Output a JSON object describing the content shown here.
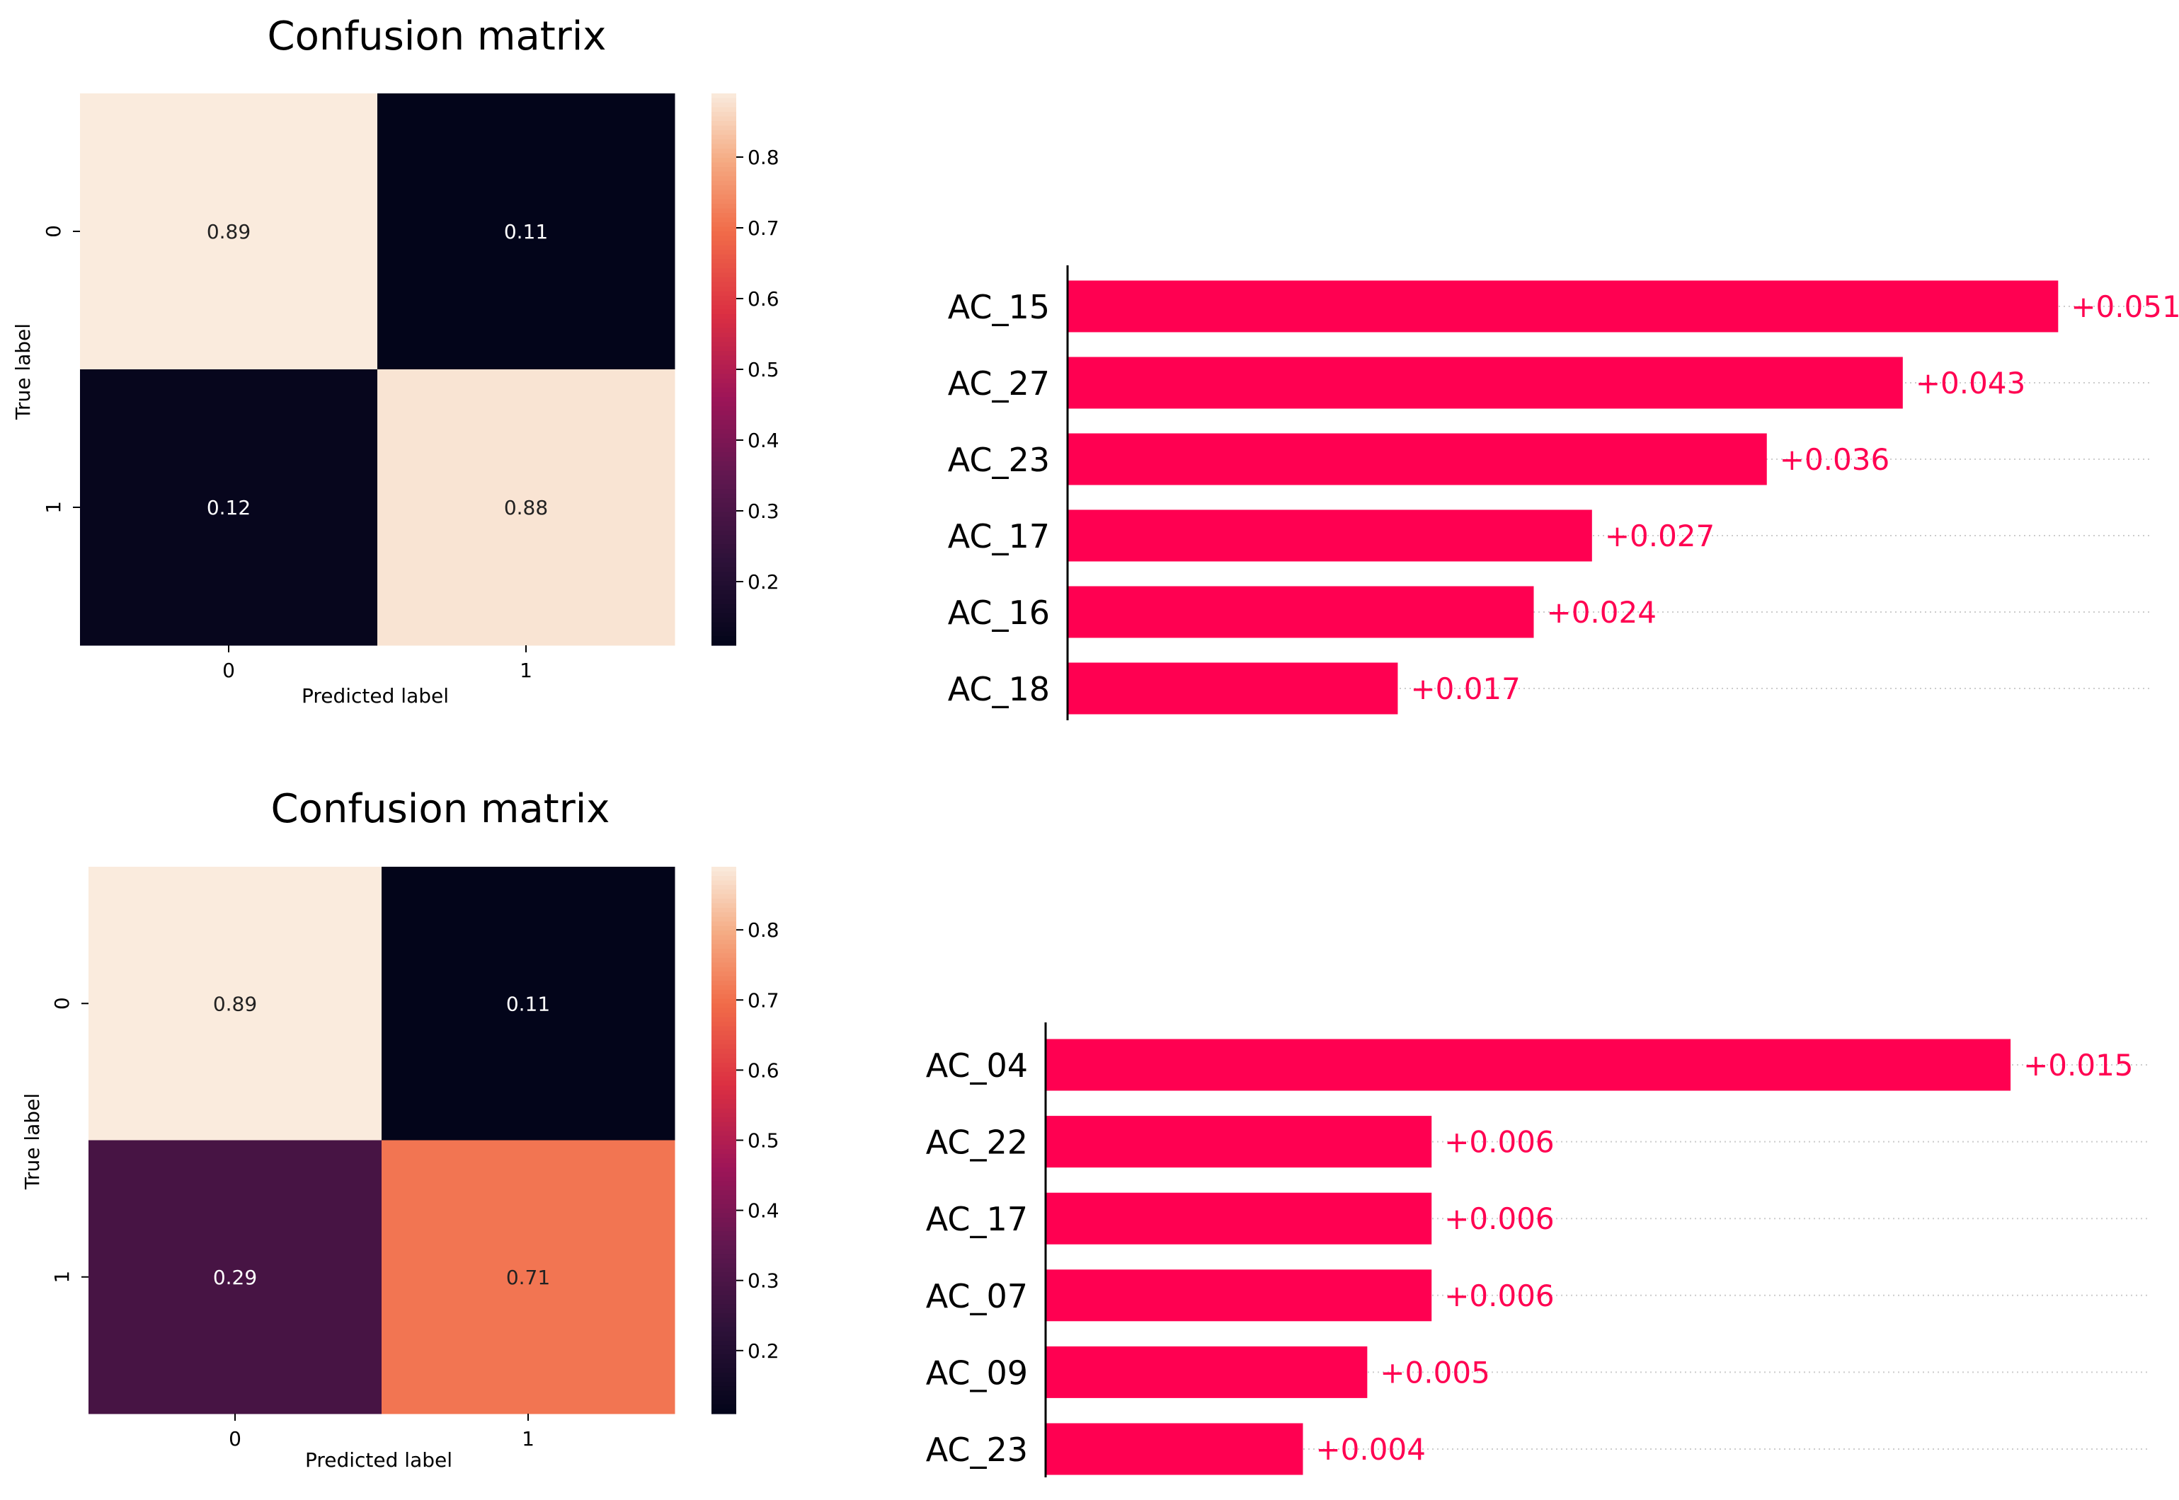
{
  "figure": {
    "panels": [
      "top",
      "bottom"
    ]
  },
  "chart_data": [
    {
      "id": "cm-top",
      "type": "heatmap",
      "title": "Confusion matrix",
      "xlabel": "Predicted label",
      "ylabel": "True label",
      "x_ticks": [
        "0",
        "1"
      ],
      "y_ticks": [
        "0",
        "1"
      ],
      "values": [
        [
          0.89,
          0.11
        ],
        [
          0.12,
          0.88
        ]
      ],
      "cell_labels": [
        [
          "0.89",
          "0.11"
        ],
        [
          "0.12",
          "0.88"
        ]
      ],
      "colorbar": {
        "ticks": [
          0.2,
          0.3,
          0.4,
          0.5,
          0.6,
          0.7,
          0.8
        ],
        "tick_labels": [
          "0.2",
          "0.3",
          "0.4",
          "0.5",
          "0.6",
          "0.7",
          "0.8"
        ],
        "vmin": 0.11,
        "vmax": 0.89
      }
    },
    {
      "id": "bar-top",
      "type": "bar",
      "orientation": "horizontal",
      "categories": [
        "AC_15",
        "AC_27",
        "AC_23",
        "AC_17",
        "AC_16",
        "AC_18"
      ],
      "values": [
        0.051,
        0.043,
        0.036,
        0.027,
        0.024,
        0.017
      ],
      "value_labels": [
        "+0.051",
        "+0.043",
        "+0.036",
        "+0.027",
        "+0.024",
        "+0.017"
      ],
      "xlim": [
        0,
        0.0562
      ],
      "color": "#ff0051",
      "gridlines": "dotted"
    },
    {
      "id": "cm-bottom",
      "type": "heatmap",
      "title": "Confusion matrix",
      "xlabel": "Predicted label",
      "ylabel": "True label",
      "x_ticks": [
        "0",
        "1"
      ],
      "y_ticks": [
        "0",
        "1"
      ],
      "values": [
        [
          0.89,
          0.11
        ],
        [
          0.29,
          0.71
        ]
      ],
      "cell_labels": [
        [
          "0.89",
          "0.11"
        ],
        [
          "0.29",
          "0.71"
        ]
      ],
      "colorbar": {
        "ticks": [
          0.2,
          0.3,
          0.4,
          0.5,
          0.6,
          0.7,
          0.8
        ],
        "tick_labels": [
          "0.2",
          "0.3",
          "0.4",
          "0.5",
          "0.6",
          "0.7",
          "0.8"
        ],
        "vmin": 0.11,
        "vmax": 0.89
      }
    },
    {
      "id": "bar-bottom",
      "type": "bar",
      "orientation": "horizontal",
      "categories": [
        "AC_04",
        "AC_22",
        "AC_17",
        "AC_07",
        "AC_09",
        "AC_23"
      ],
      "values": [
        0.015,
        0.006,
        0.006,
        0.006,
        0.005,
        0.004
      ],
      "value_labels": [
        "+0.015",
        "+0.006",
        "+0.006",
        "+0.006",
        "+0.005",
        "+0.004"
      ],
      "xlim": [
        0,
        0.0172
      ],
      "color": "#ff0051",
      "gridlines": "dotted"
    }
  ]
}
